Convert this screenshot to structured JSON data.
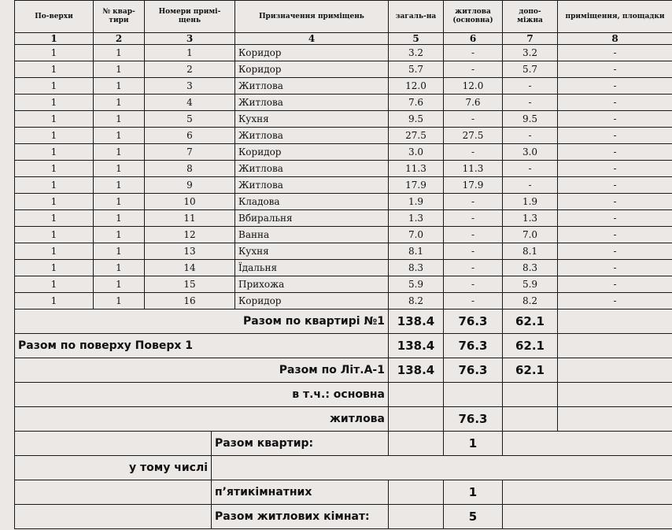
{
  "headers": [
    "По-верхи",
    "№ квар-тири",
    "Номери примі-щень",
    "Призначення приміщень",
    "загаль-на",
    "житлова (основна)",
    "допо-міжна",
    "приміщення, площадки"
  ],
  "col_numbers": [
    "1",
    "2",
    "3",
    "4",
    "5",
    "6",
    "7",
    "8"
  ],
  "rows": [
    [
      "1",
      "1",
      "1",
      "Коридор",
      "3.2",
      "-",
      "3.2",
      "-"
    ],
    [
      "1",
      "1",
      "2",
      "Коридор",
      "5.7",
      "-",
      "5.7",
      "-"
    ],
    [
      "1",
      "1",
      "3",
      "Житлова",
      "12.0",
      "12.0",
      "-",
      "-"
    ],
    [
      "1",
      "1",
      "4",
      "Житлова",
      "7.6",
      "7.6",
      "-",
      "-"
    ],
    [
      "1",
      "1",
      "5",
      "Кухня",
      "9.5",
      "-",
      "9.5",
      "-"
    ],
    [
      "1",
      "1",
      "6",
      "Житлова",
      "27.5",
      "27.5",
      "-",
      "-"
    ],
    [
      "1",
      "1",
      "7",
      "Коридор",
      "3.0",
      "-",
      "3.0",
      "-"
    ],
    [
      "1",
      "1",
      "8",
      "Житлова",
      "11.3",
      "11.3",
      "-",
      "-"
    ],
    [
      "1",
      "1",
      "9",
      "Житлова",
      "17.9",
      "17.9",
      "-",
      "-"
    ],
    [
      "1",
      "1",
      "10",
      "Кладова",
      "1.9",
      "-",
      "1.9",
      "-"
    ],
    [
      "1",
      "1",
      "11",
      "Вбиральня",
      "1.3",
      "-",
      "1.3",
      "-"
    ],
    [
      "1",
      "1",
      "12",
      "Ванна",
      "7.0",
      "-",
      "7.0",
      "-"
    ],
    [
      "1",
      "1",
      "13",
      "Кухня",
      "8.1",
      "-",
      "8.1",
      "-"
    ],
    [
      "1",
      "1",
      "14",
      "Їдальня",
      "8.3",
      "-",
      "8.3",
      "-"
    ],
    [
      "1",
      "1",
      "15",
      "Прихожа",
      "5.9",
      "-",
      "5.9",
      "-"
    ],
    [
      "1",
      "1",
      "16",
      "Коридор",
      "8.2",
      "-",
      "8.2",
      "-"
    ]
  ],
  "totals": [
    {
      "label": "Разом по квартирі №1",
      "align": "right",
      "total": "138.4",
      "living": "76.3",
      "aux": "62.1"
    },
    {
      "label": "Разом по поверху Поверх 1",
      "align": "left",
      "total": "138.4",
      "living": "76.3",
      "aux": "62.1"
    },
    {
      "label": "Разом по Літ.А-1",
      "align": "right",
      "total": "138.4",
      "living": "76.3",
      "aux": "62.1"
    },
    {
      "label": "в т.ч.: основна",
      "align": "right",
      "total": "",
      "living": "",
      "aux": ""
    },
    {
      "label": "житлова",
      "align": "right",
      "total": "",
      "living": "76.3",
      "aux": ""
    }
  ],
  "summary": {
    "apartments_label": "Разом квартир:",
    "apartments_value": "1",
    "including_label": "у тому числі",
    "five_room_label": "п’ятикімнатних",
    "five_room_value": "1",
    "living_rooms_label": "Разом житлових кімнат:",
    "living_rooms_value": "5"
  }
}
